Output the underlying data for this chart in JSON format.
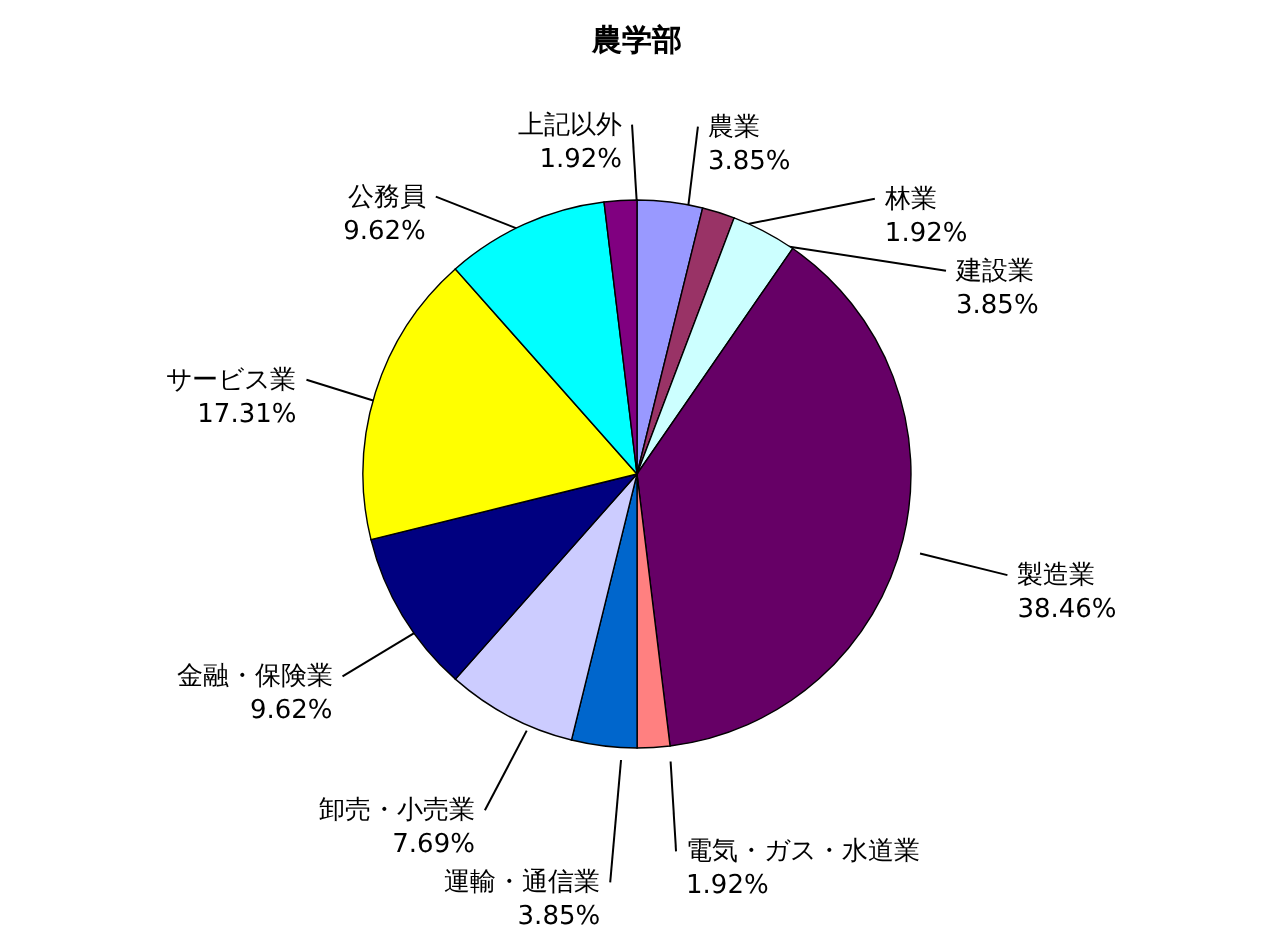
{
  "chart_data": {
    "type": "pie",
    "title": "農学部",
    "categories": [
      "農業",
      "林業",
      "建設業",
      "製造業",
      "電気・ガス・水道業",
      "運輸・通信業",
      "卸売・小売業",
      "金融・保険業",
      "サービス業",
      "公務員",
      "上記以外"
    ],
    "values": [
      3.85,
      1.92,
      3.85,
      38.46,
      1.92,
      3.85,
      7.69,
      9.62,
      17.31,
      9.62,
      1.92
    ],
    "value_labels": [
      "3.85%",
      "1.92%",
      "3.85%",
      "38.46%",
      "1.92%",
      "3.85%",
      "7.69%",
      "9.62%",
      "17.31%",
      "9.62%",
      "1.92%"
    ],
    "colors": [
      "#9999ff",
      "#993366",
      "#ccffff",
      "#660066",
      "#ff8080",
      "#0066cc",
      "#ccccff",
      "#000080",
      "#ffff00",
      "#00ffff",
      "#800080"
    ]
  }
}
